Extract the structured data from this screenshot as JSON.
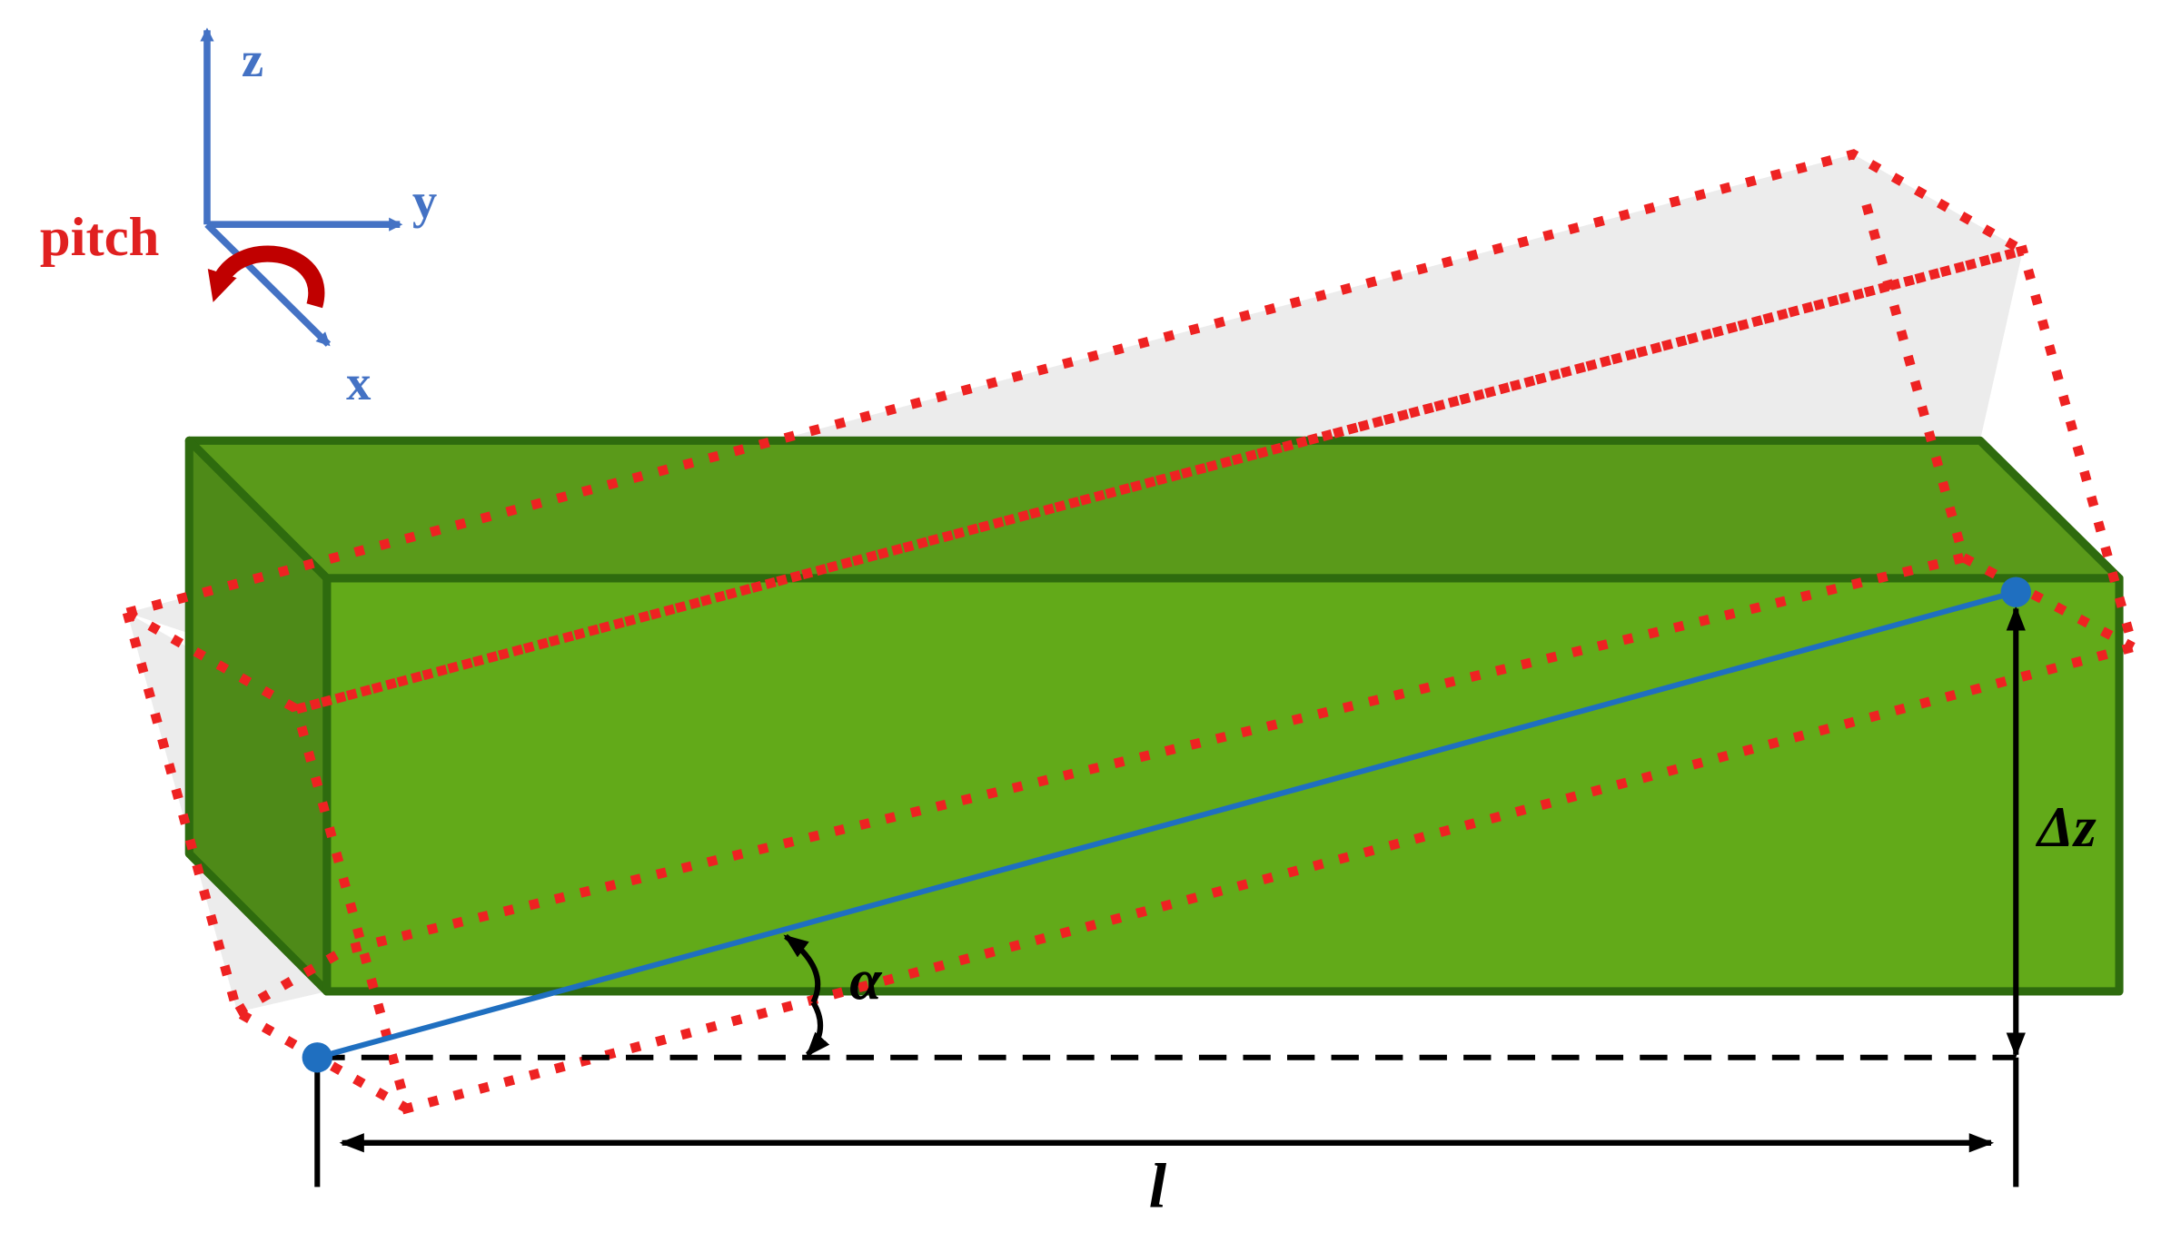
{
  "axes": {
    "z": "z",
    "y": "y",
    "x": "x"
  },
  "rotation": "pitch",
  "dimensions": {
    "height": "Δz",
    "angle": "α",
    "length": "l"
  }
}
